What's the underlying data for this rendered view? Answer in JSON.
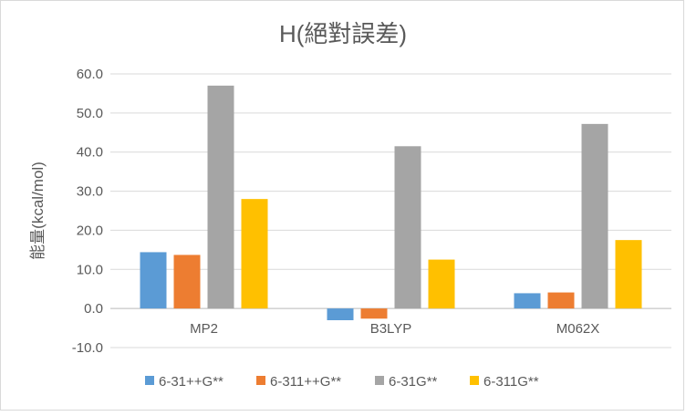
{
  "chart_data": {
    "type": "bar",
    "title": "H(絕對誤差)",
    "xlabel": "",
    "ylabel": "能量(kcal/mol)",
    "categories": [
      "MP2",
      "B3LYP",
      "M062X"
    ],
    "series": [
      {
        "name": "6-31++G**",
        "color": "#5b9bd5",
        "values": [
          14.4,
          -3.0,
          3.9
        ]
      },
      {
        "name": "6-311++G**",
        "color": "#ed7d31",
        "values": [
          13.7,
          -2.6,
          4.1
        ]
      },
      {
        "name": "6-31G**",
        "color": "#a5a5a5",
        "values": [
          57.0,
          41.5,
          47.2
        ]
      },
      {
        "name": "6-311G**",
        "color": "#ffc000",
        "values": [
          28.0,
          12.5,
          17.5
        ]
      }
    ],
    "ylim": [
      -10,
      60
    ],
    "yticks": [
      "-10.0",
      "0.0",
      "10.0",
      "20.0",
      "30.0",
      "40.0",
      "50.0",
      "60.0"
    ],
    "grid": true,
    "legend_position": "bottom"
  }
}
